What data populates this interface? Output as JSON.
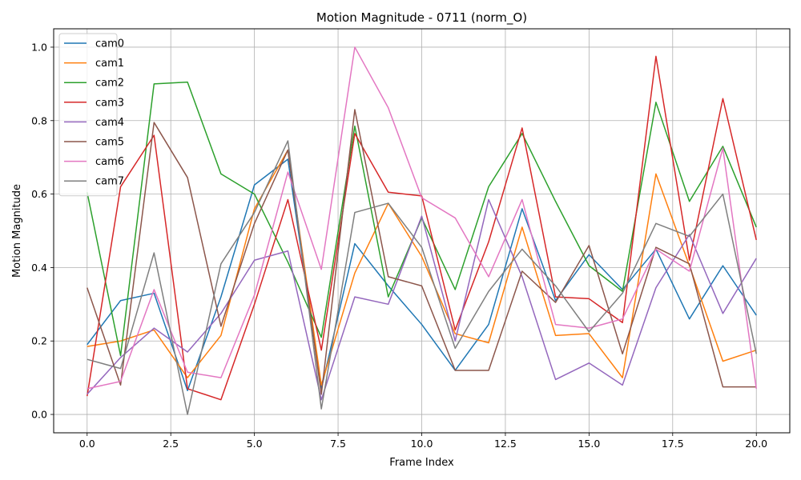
{
  "chart_data": {
    "type": "line",
    "title": "Motion Magnitude - 0711 (norm_O)",
    "xlabel": "Frame Index",
    "ylabel": "Motion Magnitude",
    "xlim": [
      -1.0,
      21.0
    ],
    "ylim": [
      -0.05,
      1.05
    ],
    "xticks": [
      0.0,
      2.5,
      5.0,
      7.5,
      10.0,
      12.5,
      15.0,
      17.5,
      20.0
    ],
    "xtick_labels": [
      "0.0",
      "2.5",
      "5.0",
      "7.5",
      "10.0",
      "12.5",
      "15.0",
      "17.5",
      "20.0"
    ],
    "yticks": [
      0.0,
      0.2,
      0.4,
      0.6,
      0.8,
      1.0
    ],
    "ytick_labels": [
      "0.0",
      "0.2",
      "0.4",
      "0.6",
      "0.8",
      "1.0"
    ],
    "grid": true,
    "legend_position": "top-left",
    "x": [
      0,
      1,
      2,
      3,
      4,
      5,
      6,
      7,
      8,
      9,
      10,
      11,
      12,
      13,
      14,
      15,
      16,
      17,
      18,
      19,
      20
    ],
    "series": [
      {
        "name": "cam0",
        "color": "#1f77b4",
        "values": [
          0.19,
          0.31,
          0.33,
          0.065,
          0.32,
          0.625,
          0.695,
          0.07,
          0.465,
          0.35,
          0.245,
          0.12,
          0.245,
          0.56,
          0.31,
          0.435,
          0.34,
          0.45,
          0.26,
          0.405,
          0.27
        ]
      },
      {
        "name": "cam1",
        "color": "#ff7f0e",
        "values": [
          0.185,
          0.2,
          0.23,
          0.1,
          0.215,
          0.56,
          0.72,
          0.08,
          0.385,
          0.575,
          0.43,
          0.22,
          0.195,
          0.51,
          0.215,
          0.22,
          0.1,
          0.655,
          0.405,
          0.145,
          0.175
        ]
      },
      {
        "name": "cam2",
        "color": "#2ca02c",
        "values": [
          0.605,
          0.16,
          0.9,
          0.905,
          0.655,
          0.6,
          0.415,
          0.21,
          0.785,
          0.32,
          0.535,
          0.34,
          0.62,
          0.765,
          0.58,
          0.405,
          0.335,
          0.85,
          0.58,
          0.73,
          0.51
        ]
      },
      {
        "name": "cam3",
        "color": "#d62728",
        "values": [
          0.05,
          0.62,
          0.76,
          0.07,
          0.04,
          0.3,
          0.585,
          0.175,
          0.765,
          0.605,
          0.595,
          0.23,
          0.47,
          0.78,
          0.32,
          0.315,
          0.25,
          0.975,
          0.42,
          0.86,
          0.475
        ]
      },
      {
        "name": "cam4",
        "color": "#9467bd",
        "values": [
          0.055,
          0.155,
          0.235,
          0.17,
          0.275,
          0.42,
          0.445,
          0.04,
          0.32,
          0.3,
          0.54,
          0.2,
          0.585,
          0.375,
          0.095,
          0.14,
          0.08,
          0.345,
          0.49,
          0.275,
          0.425
        ]
      },
      {
        "name": "cam5",
        "color": "#8c564b",
        "values": [
          0.345,
          0.08,
          0.795,
          0.645,
          0.24,
          0.52,
          0.72,
          0.055,
          0.83,
          0.375,
          0.35,
          0.12,
          0.12,
          0.39,
          0.305,
          0.46,
          0.165,
          0.455,
          0.41,
          0.075,
          0.075
        ]
      },
      {
        "name": "cam6",
        "color": "#e377c2",
        "values": [
          0.07,
          0.09,
          0.34,
          0.115,
          0.1,
          0.325,
          0.66,
          0.395,
          1.0,
          0.835,
          0.59,
          0.535,
          0.375,
          0.585,
          0.245,
          0.235,
          0.26,
          0.45,
          0.39,
          0.725,
          0.07
        ]
      },
      {
        "name": "cam7",
        "color": "#7f7f7f",
        "values": [
          0.15,
          0.125,
          0.44,
          0.0,
          0.41,
          0.55,
          0.745,
          0.015,
          0.55,
          0.575,
          0.455,
          0.18,
          0.335,
          0.45,
          0.35,
          0.225,
          0.33,
          0.52,
          0.485,
          0.6,
          0.165
        ]
      }
    ]
  }
}
